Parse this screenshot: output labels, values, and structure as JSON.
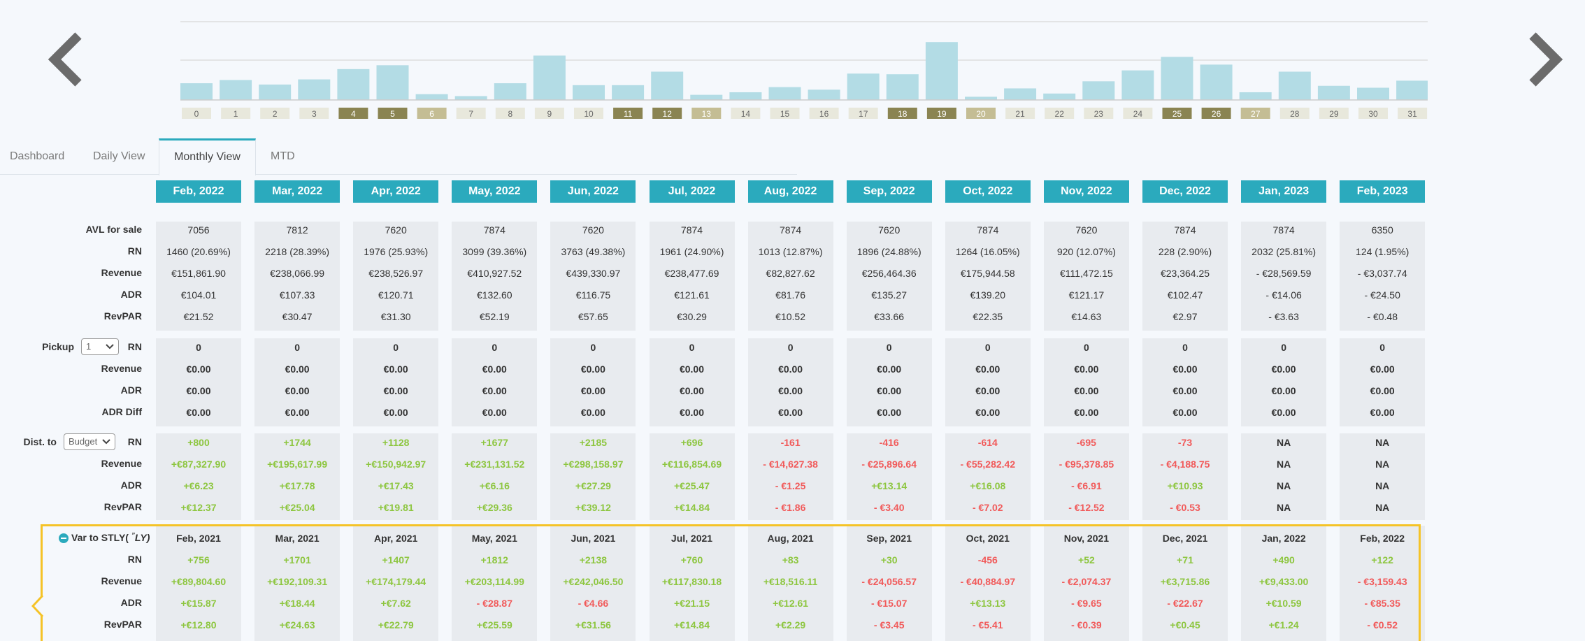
{
  "histogram": {
    "labels": [
      "0",
      "1",
      "2",
      "3",
      "4",
      "5",
      "6",
      "7",
      "8",
      "9",
      "10",
      "11",
      "12",
      "13",
      "14",
      "15",
      "16",
      "17",
      "18",
      "19",
      "20",
      "21",
      "22",
      "23",
      "24",
      "25",
      "26",
      "27",
      "28",
      "29",
      "30",
      "31"
    ],
    "values": [
      26,
      31,
      24,
      32,
      48,
      54,
      9,
      6,
      26,
      69,
      23,
      23,
      44,
      8,
      12,
      20,
      16,
      41,
      40,
      90,
      5,
      18,
      10,
      29,
      46,
      67,
      55,
      12,
      44,
      22,
      19,
      30
    ],
    "label_style": [
      "l",
      "l",
      "l",
      "l",
      "d",
      "d",
      "m",
      "l",
      "l",
      "l",
      "l",
      "d",
      "d",
      "m",
      "l",
      "l",
      "l",
      "l",
      "d",
      "d",
      "m",
      "l",
      "l",
      "l",
      "l",
      "d",
      "d",
      "m",
      "l",
      "l",
      "l",
      "l"
    ],
    "colors": {
      "bar": "#b3dce5",
      "label_light": "#e8e8dc",
      "label_dark": "#8a8452",
      "label_mid": "#c4bd94",
      "grid": "#dddddd"
    }
  },
  "nav": {
    "prev_icon": "chevron-left-icon",
    "next_icon": "chevron-right-icon"
  },
  "tabs": [
    {
      "label": "Dashboard"
    },
    {
      "label": "Daily View"
    },
    {
      "label": "Monthly View",
      "active": true
    },
    {
      "label": "MTD"
    }
  ],
  "months": [
    "Feb, 2022",
    "Mar, 2022",
    "Apr, 2022",
    "May, 2022",
    "Jun, 2022",
    "Jul, 2022",
    "Aug, 2022",
    "Sep, 2022",
    "Oct, 2022",
    "Nov, 2022",
    "Dec, 2022",
    "Jan, 2023",
    "Feb, 2023"
  ],
  "section1": {
    "labels": [
      "AVL for sale",
      "RN",
      "Revenue",
      "ADR",
      "RevPAR"
    ],
    "rows": [
      [
        "7056",
        "7812",
        "7620",
        "7874",
        "7620",
        "7874",
        "7874",
        "7620",
        "7874",
        "7620",
        "7874",
        "7874",
        "6350"
      ],
      [
        "1460 (20.69%)",
        "2218 (28.39%)",
        "1976 (25.93%)",
        "3099 (39.36%)",
        "3763 (49.38%)",
        "1961 (24.90%)",
        "1013 (12.87%)",
        "1896 (24.88%)",
        "1264 (16.05%)",
        "920 (12.07%)",
        "228 (2.90%)",
        "2032 (25.81%)",
        "124 (1.95%)"
      ],
      [
        "€151,861.90",
        "€238,066.99",
        "€238,526.97",
        "€410,927.52",
        "€439,330.97",
        "€238,477.69",
        "€82,827.62",
        "€256,464.36",
        "€175,944.58",
        "€111,472.15",
        "€23,364.25",
        "- €28,569.59",
        "- €3,037.74"
      ],
      [
        "€104.01",
        "€107.33",
        "€120.71",
        "€132.60",
        "€116.75",
        "€121.61",
        "€81.76",
        "€135.27",
        "€139.20",
        "€121.17",
        "€102.47",
        "- €14.06",
        "- €24.50"
      ],
      [
        "€21.52",
        "€30.47",
        "€31.30",
        "€52.19",
        "€57.65",
        "€30.29",
        "€10.52",
        "€33.66",
        "€22.35",
        "€14.63",
        "€2.97",
        "- €3.63",
        "- €0.48"
      ]
    ]
  },
  "section2": {
    "pickup_label": "Pickup",
    "pickup_select": "1",
    "labels": [
      "RN",
      "Revenue",
      "ADR",
      "ADR Diff"
    ],
    "rows": [
      [
        "0",
        "0",
        "0",
        "0",
        "0",
        "0",
        "0",
        "0",
        "0",
        "0",
        "0",
        "0",
        "0"
      ],
      [
        "€0.00",
        "€0.00",
        "€0.00",
        "€0.00",
        "€0.00",
        "€0.00",
        "€0.00",
        "€0.00",
        "€0.00",
        "€0.00",
        "€0.00",
        "€0.00",
        "€0.00"
      ],
      [
        "€0.00",
        "€0.00",
        "€0.00",
        "€0.00",
        "€0.00",
        "€0.00",
        "€0.00",
        "€0.00",
        "€0.00",
        "€0.00",
        "€0.00",
        "€0.00",
        "€0.00"
      ],
      [
        "€0.00",
        "€0.00",
        "€0.00",
        "€0.00",
        "€0.00",
        "€0.00",
        "€0.00",
        "€0.00",
        "€0.00",
        "€0.00",
        "€0.00",
        "€0.00",
        "€0.00"
      ]
    ]
  },
  "section3": {
    "dist_label": "Dist. to",
    "dist_select": "Budget",
    "labels": [
      "RN",
      "Revenue",
      "ADR",
      "RevPAR"
    ],
    "rows": [
      [
        "+800",
        "+1744",
        "+1128",
        "+1677",
        "+2185",
        "+696",
        "-161",
        "-416",
        "-614",
        "-695",
        "-73",
        "NA",
        "NA"
      ],
      [
        "+€87,327.90",
        "+€195,617.99",
        "+€150,942.97",
        "+€231,131.52",
        "+€298,158.97",
        "+€116,854.69",
        "- €14,627.38",
        "- €25,896.64",
        "- €55,282.42",
        "- €95,378.85",
        "- €4,188.75",
        "NA",
        "NA"
      ],
      [
        "+€6.23",
        "+€17.78",
        "+€17.43",
        "+€6.16",
        "+€27.29",
        "+€25.47",
        "- €1.25",
        "+€13.14",
        "+€16.08",
        "- €6.91",
        "+€10.93",
        "NA",
        "NA"
      ],
      [
        "+€12.37",
        "+€25.04",
        "+€19.81",
        "+€29.36",
        "+€39.12",
        "+€14.84",
        "- €1.86",
        "- €3.40",
        "- €7.02",
        "- €12.52",
        "- €0.53",
        "NA",
        "NA"
      ]
    ]
  },
  "section4": {
    "title": "Var to STLY( ",
    "title_suffix": "LY)",
    "title_icon": "stly-ly-icon",
    "labels": [
      "RN",
      "Revenue",
      "ADR",
      "RevPAR"
    ],
    "months": [
      "Feb, 2021",
      "Mar, 2021",
      "Apr, 2021",
      "May, 2021",
      "Jun, 2021",
      "Jul, 2021",
      "Aug, 2021",
      "Sep, 2021",
      "Oct, 2021",
      "Nov, 2021",
      "Dec, 2021",
      "Jan, 2022",
      "Feb, 2022"
    ],
    "rows": [
      [
        "+756",
        "+1701",
        "+1407",
        "+1812",
        "+2138",
        "+760",
        "+83",
        "+30",
        "-456",
        "+52",
        "+71",
        "+490",
        "+122"
      ],
      [
        "+€89,804.60",
        "+€192,109.31",
        "+€174,179.44",
        "+€203,114.99",
        "+€242,046.50",
        "+€117,830.18",
        "+€18,516.11",
        "- €24,056.57",
        "- €40,884.97",
        "- €2,074.37",
        "+€3,715.86",
        "+€9,433.00",
        "- €3,159.43"
      ],
      [
        "+€15.87",
        "+€18.44",
        "+€7.62",
        "- €28.87",
        "- €4.66",
        "+€21.15",
        "+€12.61",
        "- €15.07",
        "+€13.13",
        "- €9.65",
        "- €22.67",
        "+€10.59",
        "- €85.35"
      ],
      [
        "+€12.80",
        "+€24.63",
        "+€22.79",
        "+€25.59",
        "+€31.56",
        "+€14.84",
        "+€2.29",
        "- €3.45",
        "- €5.41",
        "- €0.39",
        "+€0.45",
        "+€1.24",
        "- €0.52"
      ]
    ]
  }
}
